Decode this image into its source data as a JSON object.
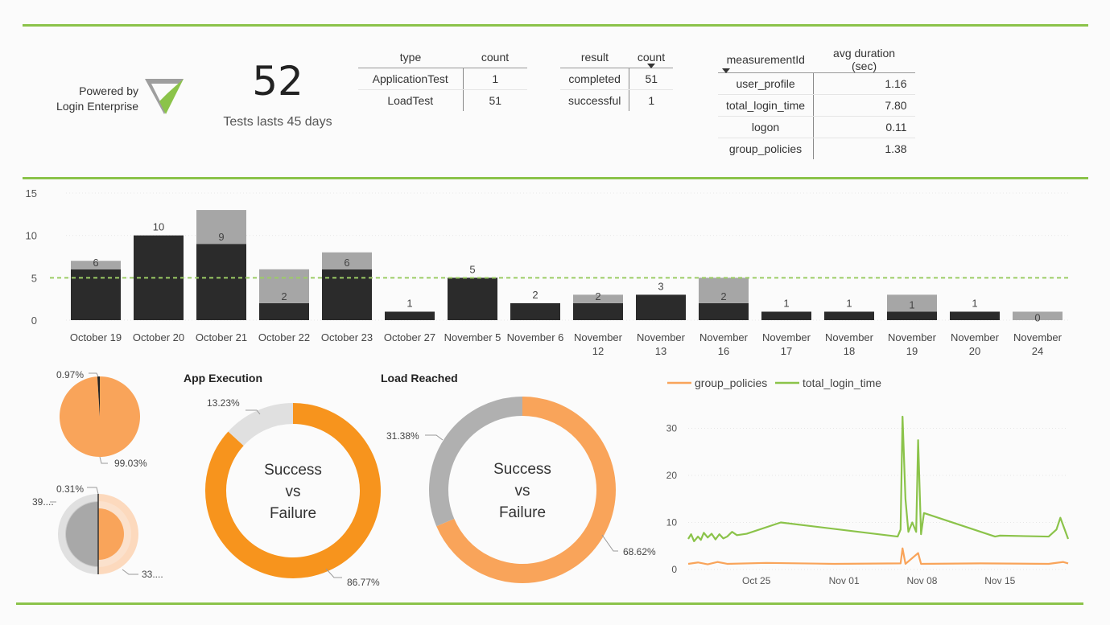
{
  "brand": {
    "powered_by": "Powered by",
    "product": "Login Enterprise",
    "logo_color": "#8bc34a"
  },
  "kpi": {
    "value": "52",
    "label": "Tests lasts 45 days"
  },
  "type_table": {
    "headers": [
      "type",
      "count"
    ],
    "rows": [
      [
        "ApplicationTest",
        "1"
      ],
      [
        "LoadTest",
        "51"
      ]
    ]
  },
  "result_table": {
    "headers": [
      "result",
      "count"
    ],
    "rows": [
      [
        "completed",
        "51"
      ],
      [
        "successful",
        "1"
      ]
    ]
  },
  "measure_table": {
    "headers": [
      "measurementId",
      "avg duration (sec)"
    ],
    "rows": [
      [
        "user_profile",
        "1.16"
      ],
      [
        "total_login_time",
        "7.80"
      ],
      [
        "logon",
        "0.11"
      ],
      [
        "group_policies",
        "1.38"
      ]
    ]
  },
  "colors": {
    "accent": "#8bc34a",
    "dark_bar": "#2b2b2b",
    "grey_bar": "#a6a6a6",
    "orange": "#f7941d",
    "light_orange": "#f9a45a",
    "peach": "#fcd9bd",
    "light_grey": "#e0e0e0",
    "mid_grey": "#b0b0b0"
  },
  "chart_data": [
    {
      "id": "daily_bars",
      "type": "bar",
      "stacked": true,
      "categories": [
        [
          "October 19"
        ],
        [
          "October 20"
        ],
        [
          "October 21"
        ],
        [
          "October 22"
        ],
        [
          "October 23"
        ],
        [
          "October 27"
        ],
        [
          "November 5"
        ],
        [
          "November 6"
        ],
        [
          "November",
          "12"
        ],
        [
          "November",
          "13"
        ],
        [
          "November",
          "16"
        ],
        [
          "November",
          "17"
        ],
        [
          "November",
          "18"
        ],
        [
          "November",
          "19"
        ],
        [
          "November",
          "20"
        ],
        [
          "November",
          "24"
        ]
      ],
      "series": [
        {
          "name": "dark",
          "values": [
            6,
            10,
            9,
            2,
            6,
            1,
            5,
            2,
            2,
            3,
            2,
            1,
            1,
            1,
            1,
            0
          ]
        },
        {
          "name": "grey",
          "values": [
            1,
            0,
            4,
            4,
            2,
            0,
            0,
            0,
            1,
            0,
            3,
            0,
            0,
            2,
            0,
            1
          ]
        }
      ],
      "labels": [
        "6",
        "10",
        "9",
        "2",
        "6",
        "1",
        "5",
        "2",
        "2",
        "3",
        "2",
        "1",
        "1",
        "1",
        "1",
        "0"
      ],
      "reference_line": 5,
      "yticks": [
        "0",
        "5",
        "10",
        "15"
      ],
      "ylim": [
        0,
        15
      ]
    },
    {
      "id": "small_pie",
      "type": "pie",
      "slices": [
        {
          "value": 99.03,
          "label": "99.03%"
        },
        {
          "value": 0.97,
          "label": "0.97%"
        }
      ]
    },
    {
      "id": "nested_donut",
      "type": "pie",
      "labels": [
        "0.31%",
        "39....",
        "33...."
      ]
    },
    {
      "id": "app_execution",
      "type": "pie",
      "title": "App Execution",
      "center_text": [
        "Success",
        "vs",
        "Failure"
      ],
      "slices": [
        {
          "value": 86.77,
          "label": "86.77%"
        },
        {
          "value": 13.23,
          "label": "13.23%"
        }
      ]
    },
    {
      "id": "load_reached",
      "type": "pie",
      "title": "Load Reached",
      "center_text": [
        "Success",
        "vs",
        "Failure"
      ],
      "slices": [
        {
          "value": 68.62,
          "label": "68.62%"
        },
        {
          "value": 31.38,
          "label": "31.38%"
        }
      ]
    },
    {
      "id": "timeline",
      "type": "line",
      "legend": [
        "group_policies",
        "total_login_time"
      ],
      "xticks": [
        "Oct 25",
        "Nov 01",
        "Nov 08",
        "Nov 15"
      ],
      "yticks": [
        "0",
        "10",
        "20",
        "30"
      ],
      "ylim": [
        0,
        33
      ],
      "xlim": [
        0,
        39
      ],
      "series": [
        {
          "name": "total_login_time",
          "points": [
            [
              0,
              6.5
            ],
            [
              0.3,
              7.5
            ],
            [
              0.6,
              6
            ],
            [
              1,
              7
            ],
            [
              1.3,
              6.3
            ],
            [
              1.6,
              7.8
            ],
            [
              2,
              6.8
            ],
            [
              2.4,
              7.6
            ],
            [
              2.8,
              6.4
            ],
            [
              3.2,
              7.5
            ],
            [
              3.6,
              6.6
            ],
            [
              4,
              7
            ],
            [
              4.5,
              8
            ],
            [
              5,
              7.3
            ],
            [
              6,
              7.6
            ],
            [
              9.5,
              10
            ],
            [
              21.5,
              7
            ],
            [
              21.8,
              8.5
            ],
            [
              22,
              32.5
            ],
            [
              22.3,
              15
            ],
            [
              22.6,
              8
            ],
            [
              23,
              10
            ],
            [
              23.4,
              8
            ],
            [
              23.6,
              27.5
            ],
            [
              23.9,
              7.5
            ],
            [
              24.2,
              12
            ],
            [
              31.5,
              7
            ],
            [
              32,
              7.2
            ],
            [
              37,
              7
            ],
            [
              37.8,
              8.5
            ],
            [
              38.2,
              11
            ],
            [
              39,
              6.5
            ]
          ]
        },
        {
          "name": "group_policies",
          "points": [
            [
              0,
              1.2
            ],
            [
              1,
              1.5
            ],
            [
              2,
              1.1
            ],
            [
              3,
              1.6
            ],
            [
              4,
              1.2
            ],
            [
              8,
              1.4
            ],
            [
              15,
              1.2
            ],
            [
              21.8,
              1.3
            ],
            [
              22,
              4.5
            ],
            [
              22.3,
              1.2
            ],
            [
              23.6,
              3.5
            ],
            [
              23.9,
              1.2
            ],
            [
              30,
              1.3
            ],
            [
              37,
              1.2
            ],
            [
              38.5,
              1.6
            ],
            [
              39,
              1.3
            ]
          ]
        }
      ]
    }
  ]
}
